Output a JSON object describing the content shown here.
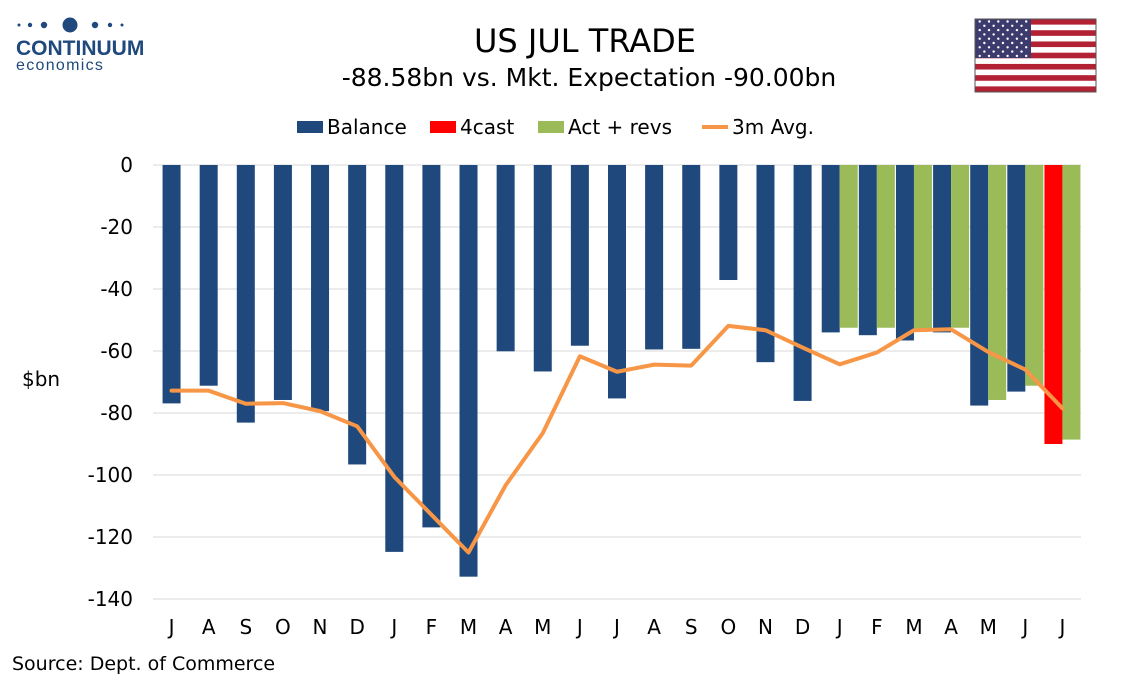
{
  "brand": {
    "name": "CONTINUUM",
    "tagline": "economics"
  },
  "flag_icon": "us-flag-icon",
  "colors": {
    "balance": "#1F497D",
    "forecast": "#FF0000",
    "actual_revised": "#9BBB59",
    "avg_3m": "#F79646",
    "grid": "#D9D9D9",
    "logo": "#1F497D"
  },
  "source": "Source: Dept. of Commerce",
  "chart_data": {
    "type": "bar",
    "title": "US JUL TRADE",
    "subtitle": "-88.58bn vs. Mkt. Expectation -90.00bn",
    "ylabel": "$bn",
    "xlabel": "",
    "ylim": [
      -140,
      0
    ],
    "yticks": [
      0,
      -20,
      -40,
      -60,
      -80,
      -100,
      -120,
      -140
    ],
    "grid": true,
    "legend_position": "top",
    "categories": [
      "J",
      "A",
      "S",
      "O",
      "N",
      "D",
      "J",
      "F",
      "M",
      "A",
      "M",
      "J",
      "J",
      "A",
      "S",
      "O",
      "N",
      "D",
      "J",
      "F",
      "M",
      "A",
      "M",
      "J",
      "J"
    ],
    "series": [
      {
        "name": "Balance",
        "kind": "bar",
        "values": [
          -76.9,
          -71.2,
          -83.1,
          -75.8,
          -79.4,
          -96.6,
          -124.8,
          -116.9,
          -132.8,
          -60.1,
          -66.6,
          -58.3,
          -75.3,
          -59.5,
          -59.3,
          -37.1,
          -63.6,
          -76.1,
          -54.0,
          -54.9,
          -56.6,
          -54.0,
          -77.6,
          -73.1,
          null
        ]
      },
      {
        "name": "4cast",
        "kind": "bar",
        "values": [
          null,
          null,
          null,
          null,
          null,
          null,
          null,
          null,
          null,
          null,
          null,
          null,
          null,
          null,
          null,
          null,
          null,
          null,
          null,
          null,
          null,
          null,
          null,
          null,
          -90.0
        ]
      },
      {
        "name": "Act + revs",
        "kind": "bar",
        "values": [
          null,
          null,
          null,
          null,
          null,
          null,
          null,
          null,
          null,
          null,
          null,
          null,
          null,
          null,
          null,
          null,
          null,
          null,
          -52.5,
          -52.5,
          -53.0,
          -52.5,
          -75.8,
          -71.2,
          -88.58
        ]
      },
      {
        "name": "3m Avg.",
        "kind": "line",
        "values": [
          -72.8,
          -72.8,
          -77.0,
          -76.8,
          -79.4,
          -84.3,
          -100.6,
          -112.8,
          -125.0,
          -103.3,
          -86.5,
          -61.7,
          -66.7,
          -64.4,
          -64.7,
          -51.9,
          -53.3,
          -58.9,
          -64.3,
          -60.5,
          -53.3,
          -53.0,
          -60.3,
          -66.0,
          -78.5
        ]
      }
    ]
  }
}
